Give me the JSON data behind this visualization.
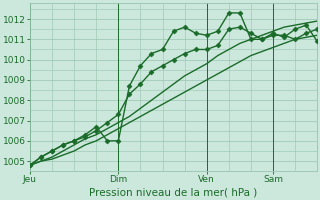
{
  "xlabel": "Pression niveau de la mer( hPa )",
  "bg_color": "#cce8dc",
  "plot_bg_color": "#cce8dc",
  "grid_color": "#99c4b0",
  "line_color": "#1a6b2a",
  "ylim": [
    1004.5,
    1012.8
  ],
  "yticks": [
    1005,
    1006,
    1007,
    1008,
    1009,
    1010,
    1011,
    1012
  ],
  "xtick_labels": [
    "Jeu",
    "Dim",
    "Ven",
    "Sam"
  ],
  "xtick_positions": [
    0,
    8,
    16,
    22
  ],
  "total_points": 27,
  "series": [
    {
      "y": [
        1004.8,
        1005.2,
        1005.5,
        1005.8,
        1006.0,
        1006.3,
        1006.7,
        1006.0,
        1006.0,
        1008.7,
        1009.7,
        1010.3,
        1010.5,
        1011.4,
        1011.6,
        1011.3,
        1011.2,
        1011.4,
        1012.3,
        1012.3,
        1011.0,
        1011.0,
        1011.3,
        1011.1,
        1011.5,
        1011.7,
        1010.9
      ],
      "style": "-",
      "marker": "D",
      "linewidth": 1.0,
      "markersize": 2.5
    },
    {
      "y": [
        1004.8,
        1005.2,
        1005.5,
        1005.8,
        1006.0,
        1006.2,
        1006.5,
        1006.9,
        1007.3,
        1008.3,
        1008.8,
        1009.4,
        1009.7,
        1010.0,
        1010.3,
        1010.5,
        1010.5,
        1010.7,
        1011.5,
        1011.6,
        1011.3,
        1011.0,
        1011.2,
        1011.2,
        1011.0,
        1011.3,
        1011.5
      ],
      "style": "-",
      "marker": "D",
      "linewidth": 1.0,
      "markersize": 2.5
    },
    {
      "y": [
        1004.8,
        1005.0,
        1005.2,
        1005.5,
        1005.8,
        1006.1,
        1006.3,
        1006.6,
        1006.9,
        1007.2,
        1007.6,
        1008.0,
        1008.4,
        1008.8,
        1009.2,
        1009.5,
        1009.8,
        1010.2,
        1010.5,
        1010.8,
        1011.0,
        1011.2,
        1011.4,
        1011.6,
        1011.7,
        1011.8,
        1011.9
      ],
      "style": "-",
      "marker": null,
      "linewidth": 1.0,
      "markersize": 0
    },
    {
      "y": [
        1004.8,
        1005.0,
        1005.1,
        1005.3,
        1005.5,
        1005.8,
        1006.0,
        1006.3,
        1006.6,
        1006.9,
        1007.2,
        1007.5,
        1007.8,
        1008.1,
        1008.4,
        1008.7,
        1009.0,
        1009.3,
        1009.6,
        1009.9,
        1010.2,
        1010.4,
        1010.6,
        1010.8,
        1011.0,
        1011.1,
        1011.2
      ],
      "style": "-",
      "marker": null,
      "linewidth": 1.0,
      "markersize": 0
    }
  ],
  "font_color": "#1a6b2a",
  "tick_fontsize": 6.5,
  "xlabel_fontsize": 7.5
}
